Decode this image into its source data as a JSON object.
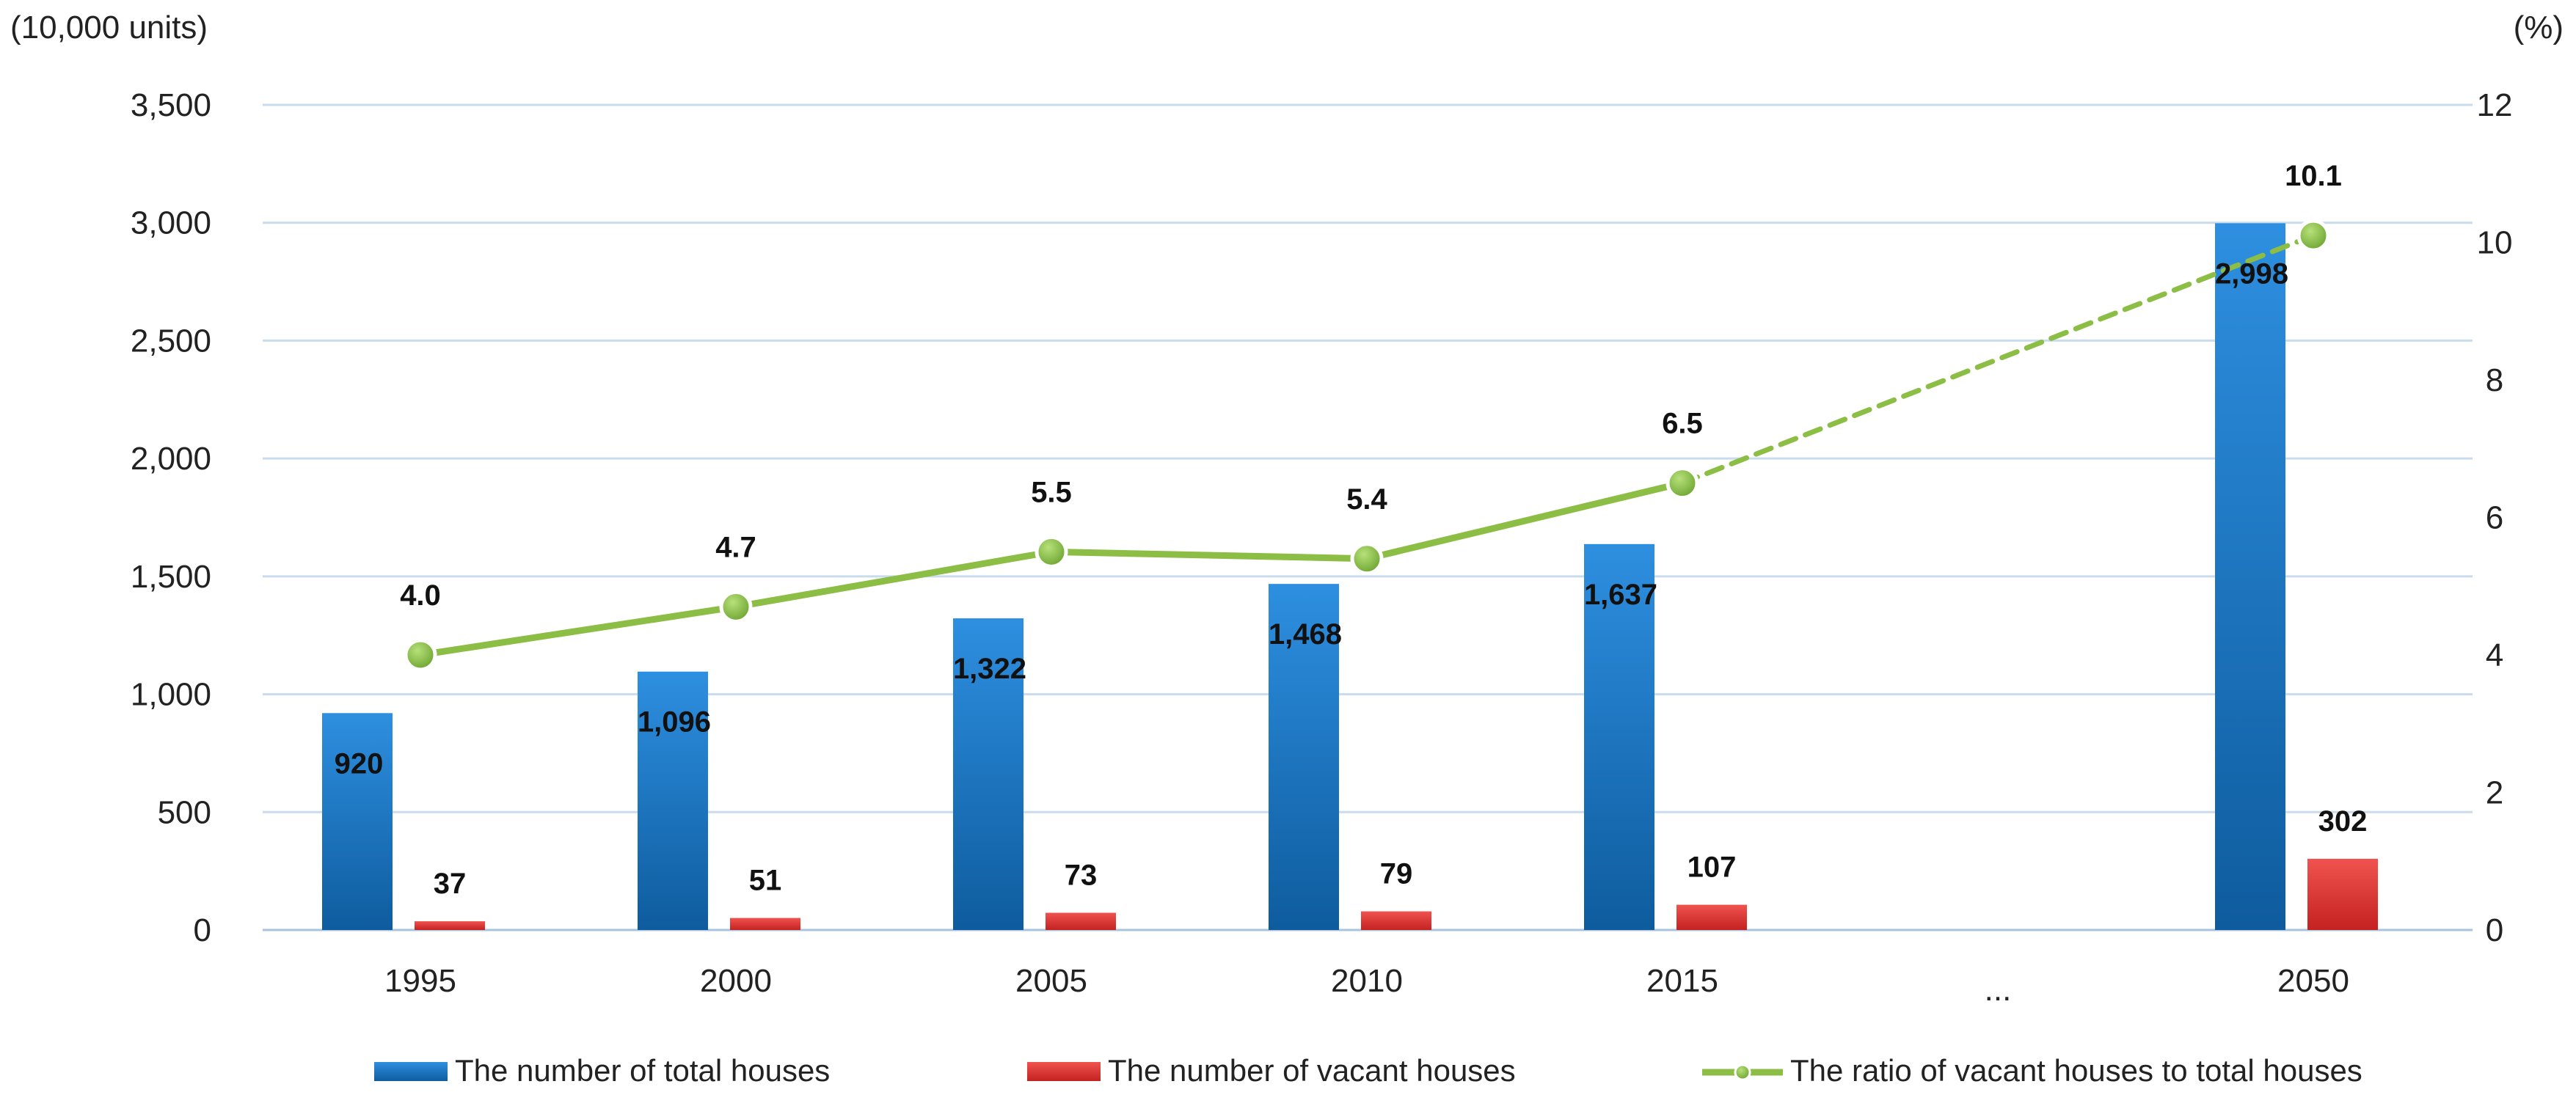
{
  "chart_data": {
    "type": "bar+line",
    "left_axis_unit": "(10,000 units)",
    "right_axis_unit": "(%)",
    "categories": [
      "1995",
      "2000",
      "2005",
      "2010",
      "2015",
      "...",
      "2050"
    ],
    "left_ylim": [
      0,
      3500
    ],
    "left_ticks": [
      "0",
      "500",
      "1,000",
      "1,500",
      "2,000",
      "2,500",
      "3,000",
      "3,500"
    ],
    "left_tick_values": [
      0,
      500,
      1000,
      1500,
      2000,
      2500,
      3000,
      3500
    ],
    "right_ylim": [
      0,
      12
    ],
    "right_ticks": [
      "0",
      "2",
      "4",
      "6",
      "8",
      "10",
      "12"
    ],
    "right_tick_values": [
      0,
      2,
      4,
      6,
      8,
      10,
      12
    ],
    "series": [
      {
        "name": "The number of total houses",
        "kind": "bar",
        "color": "#1f78c8",
        "values": [
          920,
          1096,
          1322,
          1468,
          1637,
          null,
          2998
        ],
        "labels": [
          "920",
          "1,096",
          "1,322",
          "1,468",
          "1,637",
          "",
          "2,998"
        ]
      },
      {
        "name": "The number of vacant houses",
        "kind": "bar",
        "color": "#e0312f",
        "values": [
          37,
          51,
          73,
          79,
          107,
          null,
          302
        ],
        "labels": [
          "37",
          "51",
          "73",
          "79",
          "107",
          "",
          "302"
        ]
      },
      {
        "name": "The ratio of vacant houses to total houses",
        "kind": "line",
        "axis": "right",
        "color": "#8cbd45",
        "values": [
          4.0,
          4.7,
          5.5,
          5.4,
          6.5,
          null,
          10.1
        ],
        "labels": [
          "4.0",
          "4.7",
          "5.5",
          "5.4",
          "6.5",
          "",
          "10.1"
        ],
        "dashed_last_segment": true
      }
    ],
    "legend_position": "bottom",
    "grid": true
  }
}
